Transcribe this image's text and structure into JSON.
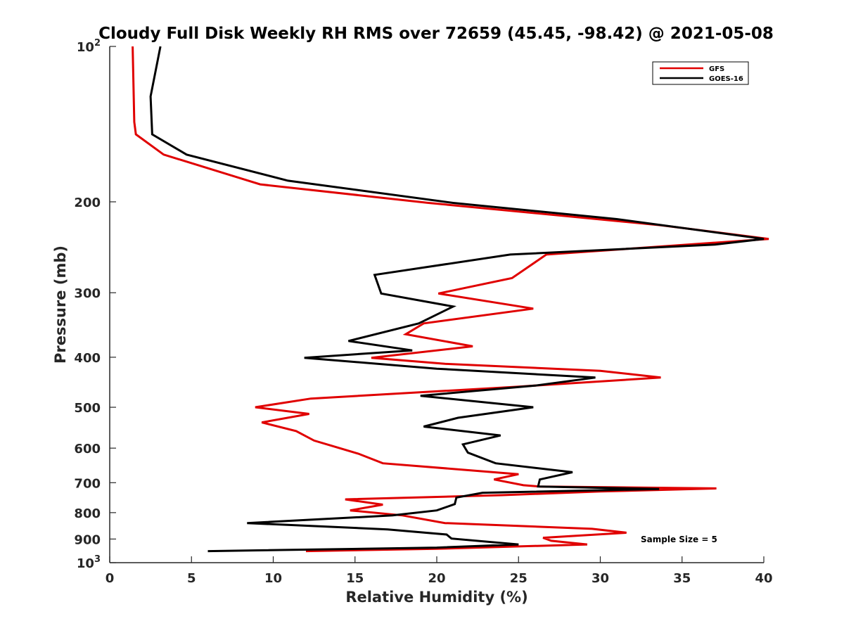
{
  "chart_data": {
    "type": "line",
    "title": "Cloudy Full Disk Weekly RH RMS over 72659 (45.45, -98.42) @ 2021-05-08",
    "xlabel": "Relative Humidity (%)",
    "ylabel": "Pressure (mb)",
    "xlim": [
      0,
      40
    ],
    "ylim": [
      100,
      1000
    ],
    "yscale": "log",
    "y_reversed": true,
    "grid": false,
    "legend_position": "top-right",
    "x_ticks": [
      {
        "value": 0,
        "label": "0"
      },
      {
        "value": 5,
        "label": "5"
      },
      {
        "value": 10,
        "label": "10"
      },
      {
        "value": 15,
        "label": "15"
      },
      {
        "value": 20,
        "label": "20"
      },
      {
        "value": 25,
        "label": "25"
      },
      {
        "value": 30,
        "label": "30"
      },
      {
        "value": 35,
        "label": "35"
      },
      {
        "value": 40,
        "label": "40"
      }
    ],
    "y_ticks": [
      {
        "value": 100,
        "base": "10",
        "exp": "2"
      },
      {
        "value": 200,
        "label": "200"
      },
      {
        "value": 300,
        "label": "300"
      },
      {
        "value": 400,
        "label": "400"
      },
      {
        "value": 500,
        "label": "500"
      },
      {
        "value": 600,
        "label": "600"
      },
      {
        "value": 700,
        "label": "700"
      },
      {
        "value": 800,
        "label": "800"
      },
      {
        "value": 900,
        "label": "900"
      },
      {
        "value": 1000,
        "base": "10",
        "exp": "3"
      }
    ],
    "annotation": "Sample Size = 5",
    "series": [
      {
        "name": "GFS",
        "color": "#e00000",
        "points": [
          [
            1.4,
            100
          ],
          [
            1.5,
            140
          ],
          [
            1.6,
            148
          ],
          [
            3.3,
            162
          ],
          [
            9.2,
            185
          ],
          [
            19.5,
            201
          ],
          [
            33.7,
            222
          ],
          [
            40.3,
            236
          ],
          [
            26.7,
            253
          ],
          [
            24.6,
            281
          ],
          [
            20.1,
            301
          ],
          [
            25.9,
            322
          ],
          [
            19.2,
            344
          ],
          [
            18.1,
            361
          ],
          [
            22.2,
            381
          ],
          [
            16.0,
            401
          ],
          [
            20.5,
            412
          ],
          [
            30.0,
            425
          ],
          [
            33.7,
            438
          ],
          [
            25.0,
            456
          ],
          [
            12.3,
            481
          ],
          [
            8.9,
            500
          ],
          [
            12.2,
            515
          ],
          [
            9.3,
            535
          ],
          [
            11.4,
            556
          ],
          [
            12.5,
            580
          ],
          [
            15.2,
            615
          ],
          [
            16.7,
            642
          ],
          [
            25.0,
            674
          ],
          [
            23.5,
            690
          ],
          [
            25.3,
            708
          ],
          [
            26.3,
            712
          ],
          [
            37.1,
            718
          ],
          [
            30.0,
            728
          ],
          [
            24.0,
            740
          ],
          [
            14.4,
            754
          ],
          [
            16.7,
            772
          ],
          [
            14.7,
            792
          ],
          [
            17.9,
            810
          ],
          [
            20.5,
            838
          ],
          [
            29.5,
            860
          ],
          [
            31.6,
            875
          ],
          [
            26.5,
            895
          ],
          [
            27.0,
            907
          ],
          [
            29.2,
            922
          ],
          [
            20.0,
            940
          ],
          [
            12.0,
            950
          ]
        ]
      },
      {
        "name": "GOES-16",
        "color": "#000000",
        "points": [
          [
            3.1,
            100
          ],
          [
            2.5,
            125
          ],
          [
            2.6,
            148
          ],
          [
            4.7,
            162
          ],
          [
            10.9,
            182
          ],
          [
            21.0,
            201
          ],
          [
            31.0,
            216
          ],
          [
            40.0,
            236
          ],
          [
            37.0,
            242
          ],
          [
            24.5,
            253
          ],
          [
            16.2,
            277
          ],
          [
            16.6,
            301
          ],
          [
            21.0,
            319
          ],
          [
            18.9,
            344
          ],
          [
            14.6,
            372
          ],
          [
            18.5,
            388
          ],
          [
            11.9,
            401
          ],
          [
            20.0,
            421
          ],
          [
            29.7,
            438
          ],
          [
            26.0,
            454
          ],
          [
            19.0,
            475
          ],
          [
            25.9,
            500
          ],
          [
            21.3,
            524
          ],
          [
            19.2,
            545
          ],
          [
            23.9,
            567
          ],
          [
            21.6,
            590
          ],
          [
            21.9,
            612
          ],
          [
            23.6,
            642
          ],
          [
            28.3,
            668
          ],
          [
            26.3,
            690
          ],
          [
            26.2,
            712
          ],
          [
            33.6,
            720
          ],
          [
            22.8,
            732
          ],
          [
            21.2,
            748
          ],
          [
            21.1,
            770
          ],
          [
            20.0,
            792
          ],
          [
            17.3,
            810
          ],
          [
            8.4,
            838
          ],
          [
            17.0,
            862
          ],
          [
            20.6,
            882
          ],
          [
            20.9,
            898
          ],
          [
            25.0,
            922
          ],
          [
            20.0,
            935
          ],
          [
            6.0,
            950
          ]
        ]
      }
    ]
  }
}
